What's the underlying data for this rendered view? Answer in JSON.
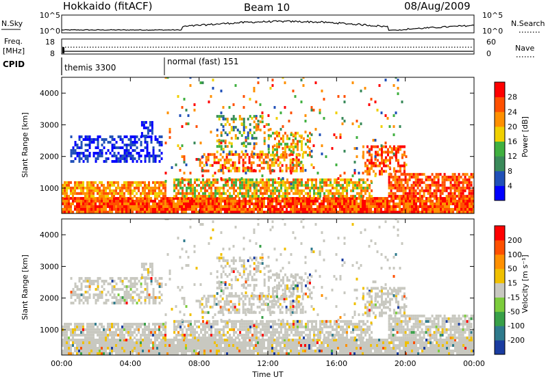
{
  "header": {
    "station": "Hokkaido (fitACF)",
    "beam": "Beam 10",
    "date": "08/Aug/2009"
  },
  "summary_panels": {
    "nsky_label": "N.Sky",
    "nsearch_label": "N.Search",
    "nsky_ticks": [
      "10^5",
      "10^0"
    ],
    "nsearch_ticks": [
      "10^5",
      "10^0"
    ],
    "freq_label": "Freq.",
    "freq_unit": "[MHz]",
    "freq_ticks": [
      "18",
      "8"
    ],
    "nave_label": "Nave",
    "nave_ticks": [
      "60",
      "0"
    ],
    "cpid_label": "CPID",
    "cpid_segments": [
      {
        "label": "themis 3300",
        "start_hour": 0
      },
      {
        "label": "normal (fast) 151",
        "start_hour": 6
      }
    ]
  },
  "chart_data": [
    {
      "type": "heatmap",
      "name": "power",
      "ylabel": "Slant Range [km]",
      "xlabel": "",
      "y_ticks": [
        "1000",
        "2000",
        "3000",
        "4000"
      ],
      "ylim": [
        200,
        4500
      ],
      "colorbar": {
        "label": "Power [dB]",
        "ticks": [
          "4",
          "8",
          "12",
          "16",
          "20",
          "24",
          "28"
        ],
        "range": [
          0,
          32
        ],
        "colors": [
          "#0000ff",
          "#2050b8",
          "#3a8a5a",
          "#40b040",
          "#f0d000",
          "#ff9000",
          "#ff5000",
          "#ff0000"
        ]
      }
    },
    {
      "type": "heatmap",
      "name": "velocity",
      "ylabel": "Slant Range [km]",
      "xlabel": "Time UT",
      "y_ticks": [
        "1000",
        "2000",
        "3000",
        "4000"
      ],
      "ylim": [
        200,
        4500
      ],
      "x_ticks": [
        "00:00",
        "04:00",
        "08:00",
        "12:00",
        "16:00",
        "20:00",
        "00:00"
      ],
      "xlim_hours": [
        0,
        24
      ],
      "colorbar": {
        "label": "Velocity [m s⁻¹]",
        "ticks": [
          "200",
          "100",
          "50",
          "15",
          "-15",
          "-50",
          "-100",
          "-200"
        ],
        "colors": [
          "#1a3ca0",
          "#2e7a8c",
          "#38a048",
          "#7ccc3c",
          "#c8c8c0",
          "#f0c000",
          "#ff9000",
          "#ff5000",
          "#ff0000"
        ]
      }
    }
  ]
}
